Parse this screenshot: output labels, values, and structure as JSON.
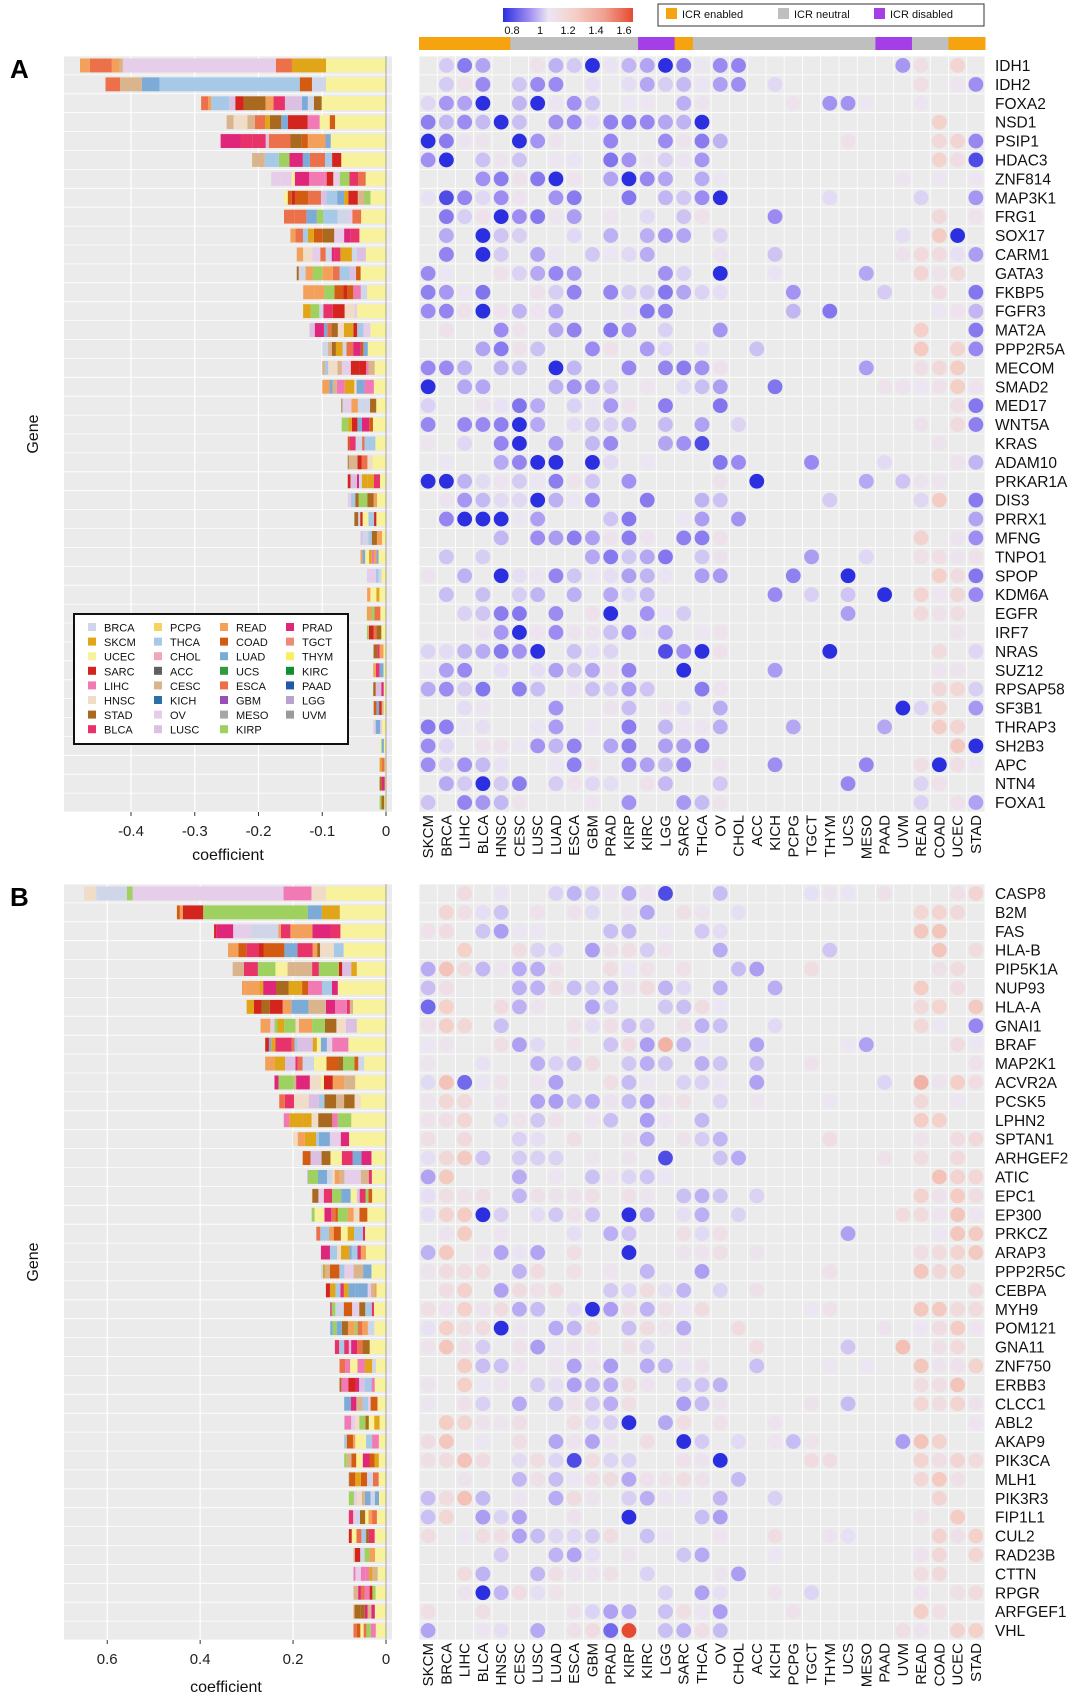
{
  "panels": [
    {
      "label": "A",
      "ylabel": "Gene",
      "xlabel": "coefficient",
      "bar_ticks": [
        "-0.4",
        "-0.3",
        "-0.2",
        "-0.1",
        "0"
      ]
    },
    {
      "label": "B",
      "ylabel": "Gene",
      "xlabel": "coefficient",
      "bar_ticks": [
        "0.6",
        "0.4",
        "0.2",
        "0"
      ]
    }
  ],
  "colorscale": {
    "tick_labels": [
      "0.8",
      "1",
      "1.2",
      "1.4",
      "1.6"
    ],
    "stops": [
      "#2b2fe0",
      "#9e8cf2",
      "#ece6f4",
      "#f4d0c8",
      "#f0a090",
      "#e64a30"
    ]
  },
  "icr_legend": [
    {
      "label": "ICR enabled",
      "color": "#f5a30e"
    },
    {
      "label": "ICR neutral",
      "color": "#bfbfbf"
    },
    {
      "label": "ICR disabled",
      "color": "#a43ee6"
    }
  ],
  "cancer_legend": [
    {
      "label": "BRCA",
      "color": "#cfd6ea"
    },
    {
      "label": "SKCM",
      "color": "#e0a519"
    },
    {
      "label": "UCEC",
      "color": "#f8f29c"
    },
    {
      "label": "SARC",
      "color": "#d3241e"
    },
    {
      "label": "LIHC",
      "color": "#f27ab4"
    },
    {
      "label": "HNSC",
      "color": "#f1dcc8"
    },
    {
      "label": "STAD",
      "color": "#a9691f"
    },
    {
      "label": "BLCA",
      "color": "#e8336a"
    },
    {
      "label": "PCPG",
      "color": "#f4d35e"
    },
    {
      "label": "THCA",
      "color": "#a7c9e8"
    },
    {
      "label": "CHOL",
      "color": "#f3a6b7"
    },
    {
      "label": "ACC",
      "color": "#5f5f5f"
    },
    {
      "label": "CESC",
      "color": "#d9b48c"
    },
    {
      "label": "KICH",
      "color": "#2a6fa8"
    },
    {
      "label": "OV",
      "color": "#e6cde9"
    },
    {
      "label": "LUSC",
      "color": "#dcc0e4"
    },
    {
      "label": "READ",
      "color": "#f3a05a"
    },
    {
      "label": "COAD",
      "color": "#d35c12"
    },
    {
      "label": "LUAD",
      "color": "#7cabd8"
    },
    {
      "label": "UCS",
      "color": "#2e9b3d"
    },
    {
      "label": "ESCA",
      "color": "#ec7049"
    },
    {
      "label": "GBM",
      "color": "#9b4fb5"
    },
    {
      "label": "MESO",
      "color": "#a6a6a6"
    },
    {
      "label": "KIRP",
      "color": "#9fd160"
    },
    {
      "label": "PRAD",
      "color": "#e0267a"
    },
    {
      "label": "TGCT",
      "color": "#ef8a78"
    },
    {
      "label": "THYM",
      "color": "#f7f060"
    },
    {
      "label": "KIRC",
      "color": "#128e2f"
    },
    {
      "label": "PAAD",
      "color": "#1e5aa8"
    },
    {
      "label": "LGG",
      "color": "#b9a2d2"
    },
    {
      "label": "UVM",
      "color": "#9a9a9a"
    }
  ],
  "cancer_columns": [
    "SKCM",
    "BRCA",
    "LIHC",
    "BLCA",
    "HNSC",
    "CESC",
    "LUSC",
    "LUAD",
    "ESCA",
    "GBM",
    "PRAD",
    "KIRP",
    "KIRC",
    "LGG",
    "SARC",
    "THCA",
    "OV",
    "CHOL",
    "ACC",
    "KICH",
    "PCPG",
    "TGCT",
    "THYM",
    "UCS",
    "MESO",
    "PAAD",
    "UVM",
    "READ",
    "COAD",
    "UCEC",
    "STAD"
  ],
  "icr_bar": [
    "enabled",
    "enabled",
    "enabled",
    "enabled",
    "enabled",
    "neutral",
    "neutral",
    "neutral",
    "neutral",
    "neutral",
    "neutral",
    "neutral",
    "disabled",
    "disabled",
    "enabled",
    "neutral",
    "neutral",
    "neutral",
    "neutral",
    "neutral",
    "neutral",
    "neutral",
    "neutral",
    "neutral",
    "neutral",
    "disabled",
    "disabled",
    "neutral",
    "neutral",
    "enabled",
    "enabled"
  ],
  "genes_A": [
    "IDH1",
    "IDH2",
    "FOXA2",
    "NSD1",
    "PSIP1",
    "HDAC3",
    "ZNF814",
    "MAP3K1",
    "FRG1",
    "SOX17",
    "CARM1",
    "GATA3",
    "FKBP5",
    "FGFR3",
    "MAT2A",
    "PPP2R5A",
    "MECOM",
    "SMAD2",
    "MED17",
    "WNT5A",
    "KRAS",
    "ADAM10",
    "PRKAR1A",
    "DIS3",
    "PRRX1",
    "MFNG",
    "TNPO1",
    "SPOP",
    "KDM6A",
    "EGFR",
    "IRF7",
    "NRAS",
    "SUZ12",
    "RPSAP58",
    "SF3B1",
    "THRAP3",
    "SH2B3",
    "APC",
    "NTN4",
    "FOXA1"
  ],
  "genes_B": [
    "CASP8",
    "B2M",
    "FAS",
    "HLA-B",
    "PIP5K1A",
    "NUP93",
    "HLA-A",
    "GNAI1",
    "BRAF",
    "MAP2K1",
    "ACVR2A",
    "PCSK5",
    "LPHN2",
    "SPTAN1",
    "ARHGEF2",
    "ATIC",
    "EPC1",
    "EP300",
    "PRKCZ",
    "ARAP3",
    "PPP2R5C",
    "CEBPA",
    "MYH9",
    "POM121",
    "GNA11",
    "ZNF750",
    "ERBB3",
    "CLCC1",
    "ABL2",
    "AKAP9",
    "PIK3CA",
    "MLH1",
    "PIK3R3",
    "FIP1L1",
    "CUL2",
    "RAD23B",
    "CTTN",
    "RPGR",
    "ARFGEF1",
    "VHL"
  ],
  "chart_data": [
    {
      "type": "bar",
      "panel": "A",
      "orientation": "horizontal-stacked",
      "categories_ref": "genes_A",
      "total_coefficients": [
        -0.48,
        -0.44,
        -0.29,
        -0.25,
        -0.26,
        -0.21,
        -0.18,
        -0.16,
        -0.16,
        -0.15,
        -0.14,
        -0.14,
        -0.13,
        -0.13,
        -0.12,
        -0.1,
        -0.1,
        -0.1,
        -0.07,
        -0.07,
        -0.06,
        -0.06,
        -0.06,
        -0.06,
        -0.05,
        -0.04,
        -0.04,
        -0.03,
        -0.03,
        -0.03,
        -0.03,
        -0.02,
        -0.02,
        -0.02,
        -0.02,
        -0.02,
        -0.01,
        -0.01,
        -0.01,
        -0.01
      ],
      "xlim": [
        -0.5,
        0
      ],
      "xlabel": "coefficient",
      "ylabel": "Gene"
    },
    {
      "type": "bar",
      "panel": "B",
      "orientation": "horizontal-stacked",
      "categories_ref": "genes_B",
      "total_coefficients": [
        0.65,
        0.45,
        0.37,
        0.34,
        0.33,
        0.31,
        0.3,
        0.27,
        0.26,
        0.26,
        0.24,
        0.23,
        0.22,
        0.2,
        0.18,
        0.17,
        0.16,
        0.16,
        0.15,
        0.14,
        0.14,
        0.13,
        0.12,
        0.12,
        0.11,
        0.1,
        0.1,
        0.09,
        0.09,
        0.09,
        0.09,
        0.08,
        0.08,
        0.08,
        0.08,
        0.07,
        0.07,
        0.07,
        0.07,
        0.07
      ],
      "xlim": [
        0,
        0.68
      ],
      "xlabel": "coefficient",
      "ylabel": "Gene"
    },
    {
      "type": "heatmap",
      "panel": "A",
      "rows_ref": "genes_A",
      "columns_ref": "cancer_columns",
      "value_range": [
        0.8,
        1.6
      ],
      "highlights": [
        [
          "IDH1",
          "GBM",
          0.8
        ],
        [
          "IDH1",
          "LGG",
          0.8
        ],
        [
          "FOXA2",
          "BLCA",
          0.8
        ],
        [
          "FOXA2",
          "LUSC",
          0.8
        ],
        [
          "NSD1",
          "HNSC",
          0.8
        ],
        [
          "NSD1",
          "THCA",
          0.8
        ],
        [
          "PSIP1",
          "SKCM",
          0.8
        ],
        [
          "PSIP1",
          "CESC",
          0.8
        ],
        [
          "HDAC3",
          "BRCA",
          0.8
        ],
        [
          "HDAC3",
          "STAD",
          0.85
        ],
        [
          "ZNF814",
          "LUAD",
          0.8
        ],
        [
          "ZNF814",
          "KIRP",
          0.8
        ],
        [
          "MAP3K1",
          "BRCA",
          0.85
        ],
        [
          "MAP3K1",
          "OV",
          0.8
        ],
        [
          "FRG1",
          "HNSC",
          0.8
        ],
        [
          "SOX17",
          "BLCA",
          0.8
        ],
        [
          "SOX17",
          "UCEC",
          0.8
        ],
        [
          "CARM1",
          "BLCA",
          0.8
        ],
        [
          "GATA3",
          "OV",
          0.8
        ],
        [
          "FGFR3",
          "BLCA",
          0.8
        ],
        [
          "MECOM",
          "LUAD",
          0.8
        ],
        [
          "SMAD2",
          "SKCM",
          0.8
        ],
        [
          "WNT5A",
          "CESC",
          0.8
        ],
        [
          "KRAS",
          "CESC",
          0.8
        ],
        [
          "KRAS",
          "THCA",
          0.85
        ],
        [
          "ADAM10",
          "LUSC",
          0.8
        ],
        [
          "ADAM10",
          "LUAD",
          0.8
        ],
        [
          "ADAM10",
          "GBM",
          0.8
        ],
        [
          "PRKAR1A",
          "SKCM",
          0.8
        ],
        [
          "PRKAR1A",
          "BRCA",
          0.8
        ],
        [
          "PRKAR1A",
          "ACC",
          0.8
        ],
        [
          "DIS3",
          "LUSC",
          0.8
        ],
        [
          "PRRX1",
          "LIHC",
          0.8
        ],
        [
          "PRRX1",
          "BLCA",
          0.8
        ],
        [
          "PRRX1",
          "HNSC",
          0.8
        ],
        [
          "SPOP",
          "HNSC",
          0.8
        ],
        [
          "SPOP",
          "UCS",
          0.8
        ],
        [
          "KDM6A",
          "PAAD",
          0.8
        ],
        [
          "EGFR",
          "PRAD",
          0.8
        ],
        [
          "IRF7",
          "CESC",
          0.8
        ],
        [
          "NRAS",
          "LUSC",
          0.8
        ],
        [
          "NRAS",
          "THCA",
          0.8
        ],
        [
          "NRAS",
          "THYM",
          0.8
        ],
        [
          "NRAS",
          "LGG",
          0.85
        ],
        [
          "SUZ12",
          "SARC",
          0.8
        ],
        [
          "SF3B1",
          "UVM",
          0.8
        ],
        [
          "SH2B3",
          "STAD",
          0.8
        ],
        [
          "APC",
          "COAD",
          0.8
        ],
        [
          "NTN4",
          "BLCA",
          0.8
        ]
      ]
    },
    {
      "type": "heatmap",
      "panel": "B",
      "rows_ref": "genes_B",
      "columns_ref": "cancer_columns",
      "value_range": [
        0.8,
        1.6
      ],
      "highlights": [
        [
          "CASP8",
          "LGG",
          0.85
        ],
        [
          "HLA-A",
          "SKCM",
          0.9
        ],
        [
          "GNAI1",
          "STAD",
          0.95
        ],
        [
          "BRAF",
          "LGG",
          1.35
        ],
        [
          "ACVR2A",
          "LIHC",
          0.9
        ],
        [
          "ACVR2A",
          "READ",
          1.35
        ],
        [
          "ARHGEF2",
          "LGG",
          0.85
        ],
        [
          "EP300",
          "BLCA",
          0.8
        ],
        [
          "EP300",
          "KIRP",
          0.8
        ],
        [
          "ARAP3",
          "KIRP",
          0.8
        ],
        [
          "MYH9",
          "GBM",
          0.8
        ],
        [
          "POM121",
          "HNSC",
          0.8
        ],
        [
          "GNA11",
          "UVM",
          1.3
        ],
        [
          "ABL2",
          "KIRP",
          0.8
        ],
        [
          "AKAP9",
          "SARC",
          0.8
        ],
        [
          "PIK3CA",
          "OV",
          0.8
        ],
        [
          "PIK3CA",
          "ESCA",
          0.85
        ],
        [
          "FIP1L1",
          "KIRP",
          0.8
        ],
        [
          "RPGR",
          "BLCA",
          0.8
        ],
        [
          "VHL",
          "KIRP",
          1.6
        ],
        [
          "VHL",
          "PRAD",
          0.9
        ]
      ]
    }
  ]
}
